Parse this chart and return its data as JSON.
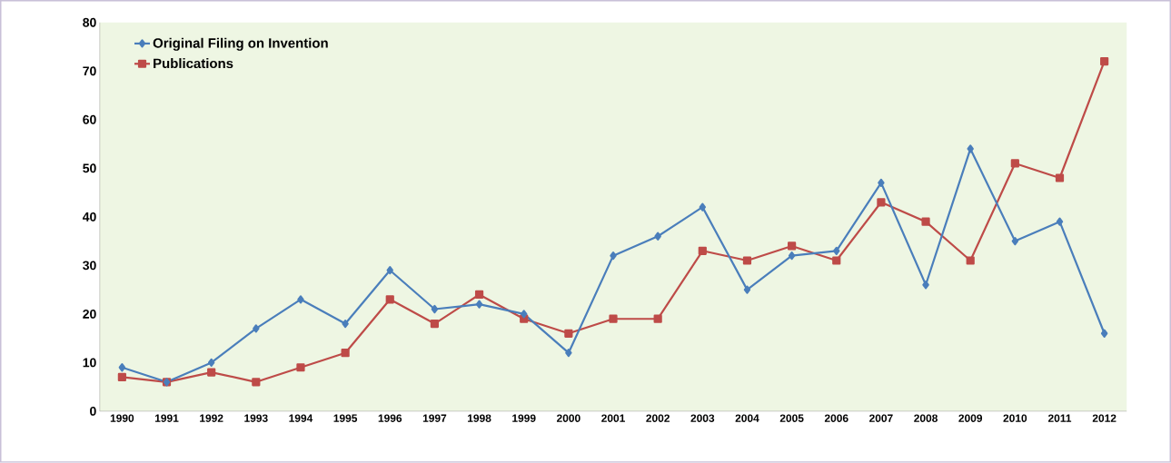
{
  "chart_data": {
    "type": "line",
    "categories": [
      "1990",
      "1991",
      "1992",
      "1993",
      "1994",
      "1995",
      "1996",
      "1997",
      "1998",
      "1999",
      "2000",
      "2001",
      "2002",
      "2003",
      "2004",
      "2005",
      "2006",
      "2007",
      "2008",
      "2009",
      "2010",
      "2011",
      "2012"
    ],
    "series": [
      {
        "name": "Original Filing on Invention",
        "color": "#4a7ebb",
        "marker": "diamond",
        "values": [
          9,
          6,
          10,
          17,
          23,
          18,
          29,
          21,
          22,
          20,
          12,
          32,
          36,
          42,
          25,
          32,
          33,
          47,
          26,
          54,
          35,
          39,
          16
        ]
      },
      {
        "name": "Publications",
        "color": "#be4b48",
        "marker": "square",
        "values": [
          7,
          6,
          8,
          6,
          9,
          12,
          23,
          18,
          24,
          19,
          16,
          19,
          19,
          33,
          31,
          34,
          31,
          43,
          39,
          31,
          51,
          48,
          72
        ]
      }
    ],
    "ylim": [
      0,
      80
    ],
    "yticks": [
      0,
      10,
      20,
      30,
      40,
      50,
      60,
      70,
      80
    ],
    "grid": false,
    "legend": "top left",
    "line_style": "solid"
  }
}
